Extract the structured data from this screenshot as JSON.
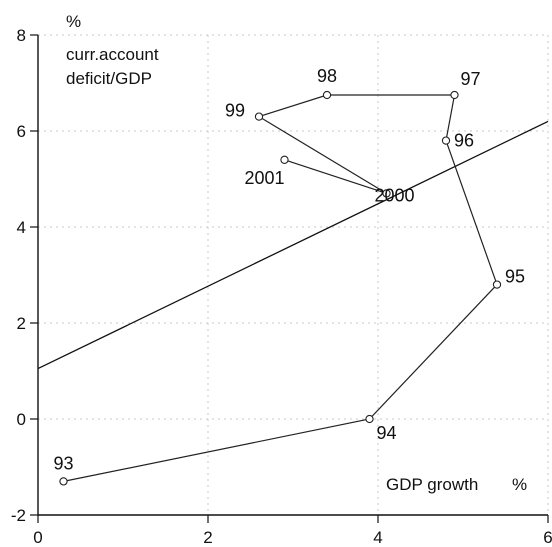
{
  "chart_data": {
    "type": "scatter",
    "y_unit": "%",
    "ylabel_line1": "curr.account",
    "ylabel_line2": "deficit/GDP",
    "xlabel": "GDP growth",
    "x_unit": "%",
    "xlim": [
      0,
      6
    ],
    "ylim": [
      -2,
      8
    ],
    "x_ticks": [
      "0",
      "2",
      "4",
      "6"
    ],
    "y_ticks": [
      "-2",
      "0",
      "2",
      "4",
      "6",
      "8"
    ],
    "grid": true,
    "series": [
      {
        "points": [
          {
            "label": "93",
            "x": 0.3,
            "y": -1.3
          },
          {
            "label": "94",
            "x": 3.9,
            "y": 0.0
          },
          {
            "label": "95",
            "x": 5.4,
            "y": 2.8
          },
          {
            "label": "96",
            "x": 4.8,
            "y": 5.8
          },
          {
            "label": "97",
            "x": 4.9,
            "y": 6.75
          },
          {
            "label": "98",
            "x": 3.4,
            "y": 6.75
          },
          {
            "label": "99",
            "x": 2.6,
            "y": 6.3
          },
          {
            "label": "2000",
            "x": 4.1,
            "y": 4.7
          },
          {
            "label": "2001",
            "x": 2.9,
            "y": 5.4
          }
        ]
      }
    ],
    "trend_line": {
      "x": [
        0,
        6
      ],
      "y": [
        1.05,
        6.2
      ]
    }
  }
}
